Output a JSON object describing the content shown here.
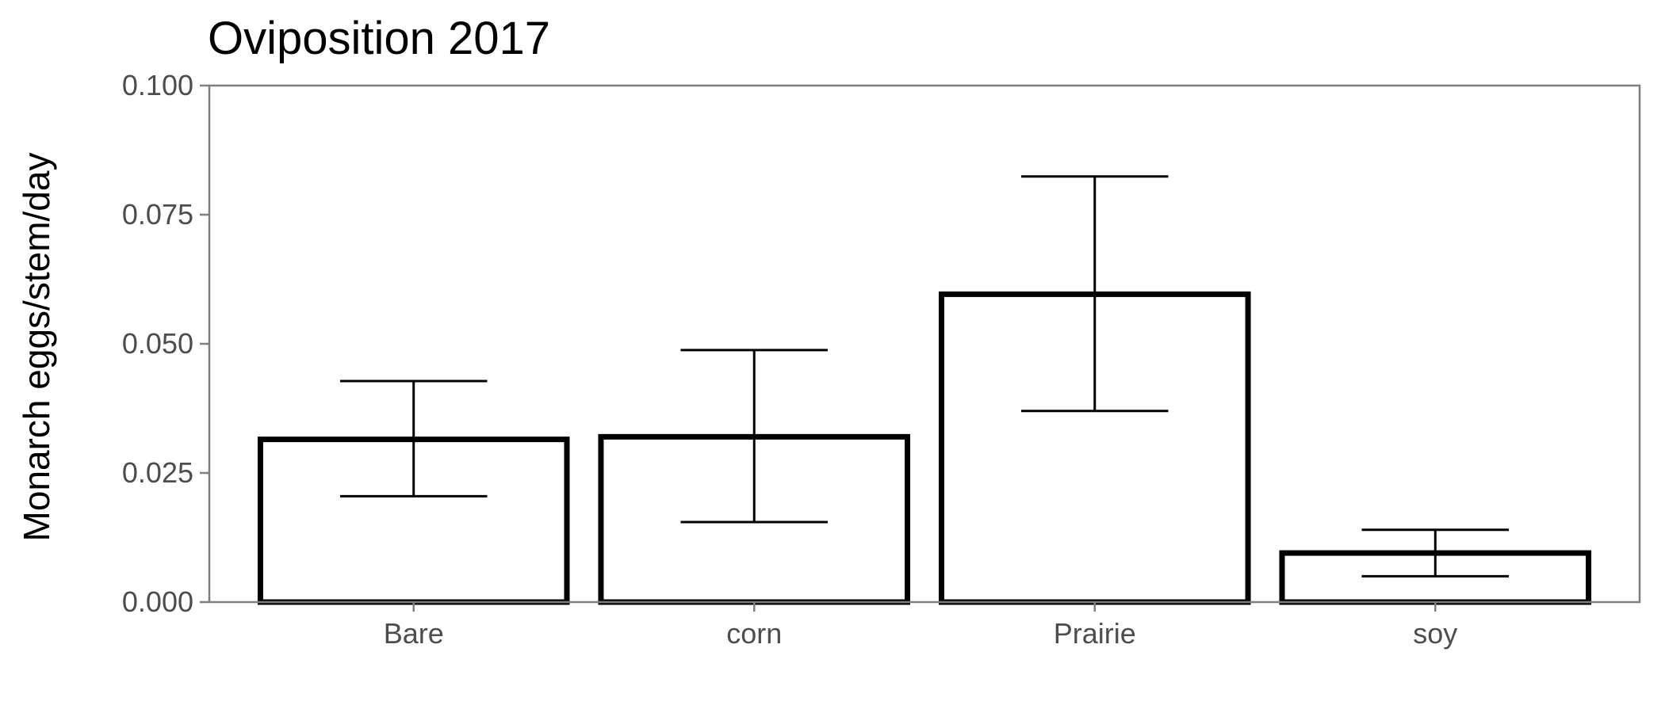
{
  "chart_data": {
    "type": "bar",
    "title": "Oviposition 2017",
    "xlabel": "",
    "ylabel": "Monarch eggs/stem/day",
    "categories": [
      "Bare",
      "corn",
      "Prairie",
      "soy"
    ],
    "values": [
      0.0315,
      0.032,
      0.0596,
      0.0095
    ],
    "error_low": [
      0.0205,
      0.0155,
      0.037,
      0.005
    ],
    "error_high": [
      0.0428,
      0.0488,
      0.0824,
      0.014
    ],
    "ylim": [
      0,
      0.1
    ],
    "yticks": [
      "0.000",
      "0.025",
      "0.050",
      "0.075",
      "0.100"
    ],
    "ytick_values": [
      0,
      0.025,
      0.05,
      0.075,
      0.1
    ],
    "grid": false,
    "legend": "none",
    "colors": {
      "bar_fill": "#ffffff",
      "bar_outline": "#000000",
      "error_bar": "#000000",
      "panel_border": "#7f7f7f",
      "tick_text": "#4d4d4d"
    }
  }
}
